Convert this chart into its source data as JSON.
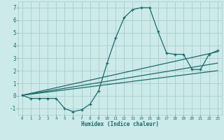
{
  "xlabel": "Humidex (Indice chaleur)",
  "xlim": [
    -0.5,
    23.5
  ],
  "ylim": [
    -1.5,
    7.5
  ],
  "xticks": [
    0,
    1,
    2,
    3,
    4,
    5,
    6,
    7,
    8,
    9,
    10,
    11,
    12,
    13,
    14,
    15,
    16,
    17,
    18,
    19,
    20,
    21,
    22,
    23
  ],
  "yticks": [
    -1,
    0,
    1,
    2,
    3,
    4,
    5,
    6,
    7
  ],
  "background_color": "#cceaea",
  "grid_color": "#aacccc",
  "line_color": "#1a6b6b",
  "line1_x": [
    0,
    1,
    2,
    3,
    4,
    5,
    6,
    7,
    8,
    9,
    10,
    11,
    12,
    13,
    14,
    15,
    16,
    17,
    18,
    19,
    20,
    21,
    22,
    23
  ],
  "line1_y": [
    0.05,
    -0.2,
    -0.2,
    -0.2,
    -0.2,
    -1.0,
    -1.25,
    -1.1,
    -0.65,
    0.4,
    2.6,
    4.6,
    6.2,
    6.85,
    7.0,
    7.0,
    5.1,
    3.4,
    3.3,
    3.3,
    2.1,
    2.1,
    3.3,
    3.6
  ],
  "line2_x": [
    0,
    23
  ],
  "line2_y": [
    0.05,
    3.5
  ],
  "line3_x": [
    0,
    23
  ],
  "line3_y": [
    0.05,
    2.6
  ],
  "line4_x": [
    0,
    23
  ],
  "line4_y": [
    0.05,
    2.0
  ]
}
